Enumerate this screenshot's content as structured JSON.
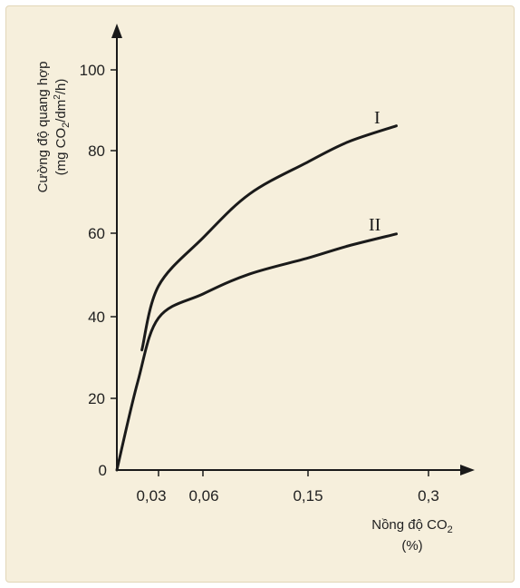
{
  "chart_data": {
    "type": "line",
    "ylabel_line1": "Cường độ quang hợp",
    "ylabel_line2": {
      "pre": "(mg CO",
      "sub": "2",
      "mid": "/dm",
      "sup": "2",
      "post": "/h)"
    },
    "xlabel_line1": {
      "pre": "Nồng độ CO",
      "sub": "2"
    },
    "xlabel_line2": "(%)",
    "x_ticks": [
      "0,03",
      "0,06",
      "0,15",
      "0,3"
    ],
    "y_ticks": [
      "0",
      "20",
      "40",
      "60",
      "80",
      "100"
    ],
    "series": [
      {
        "name": "I",
        "x": [
          0.018,
          0.03,
          0.06,
          0.1,
          0.15,
          0.2,
          0.26
        ],
        "y": [
          30,
          46,
          58,
          69,
          77,
          82,
          86
        ]
      },
      {
        "name": "II",
        "x": [
          0.0,
          0.015,
          0.03,
          0.06,
          0.1,
          0.15,
          0.2,
          0.26
        ],
        "y": [
          0,
          22,
          38,
          44,
          49,
          53,
          56,
          59
        ]
      }
    ],
    "grid": false,
    "colors": {
      "background": "#f6efdc",
      "line": "#1a1a1a"
    }
  }
}
